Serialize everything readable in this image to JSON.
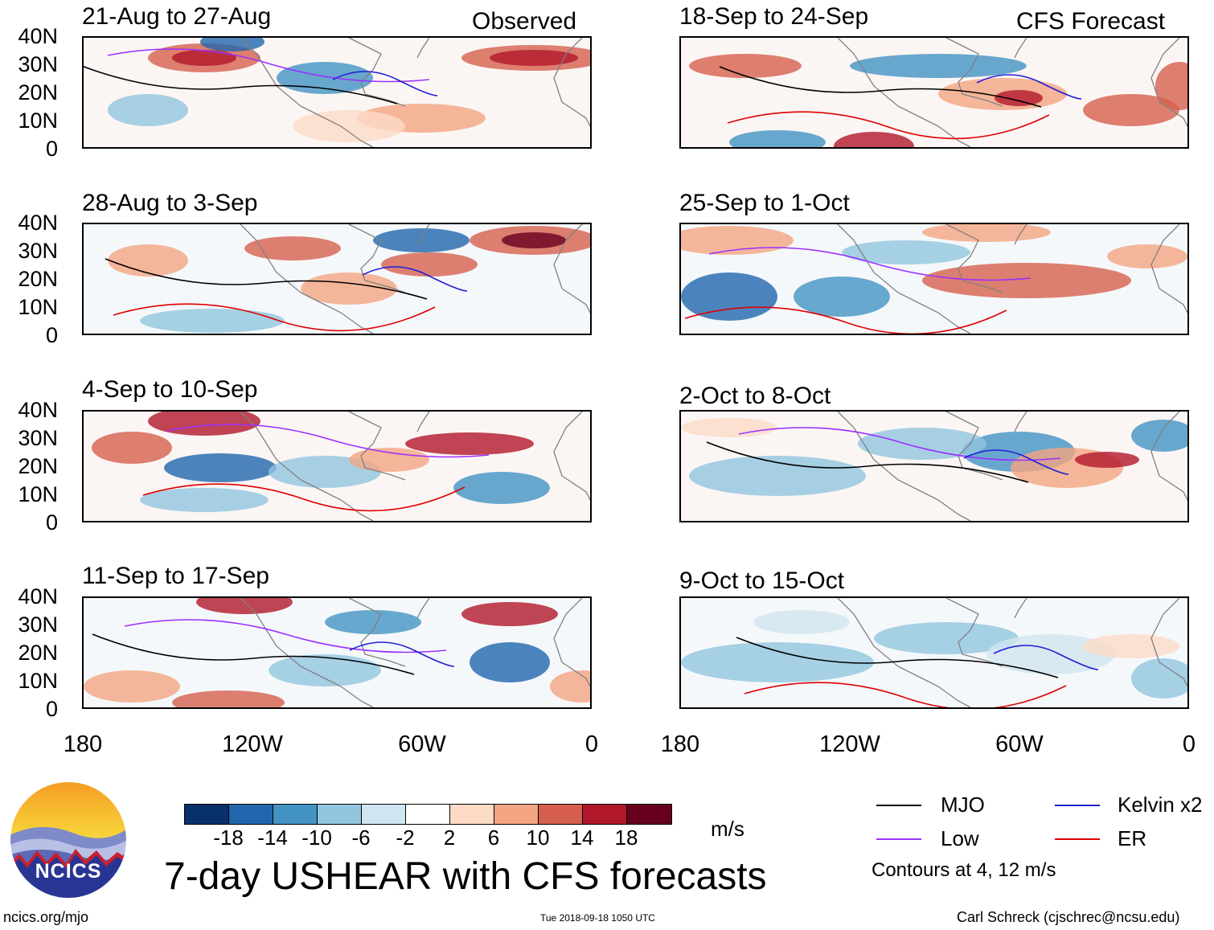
{
  "header": {
    "observed_label": "Observed",
    "forecast_label": "CFS Forecast"
  },
  "panels_left": [
    {
      "title": "21-Aug to 27-Aug"
    },
    {
      "title": "28-Aug to 3-Sep"
    },
    {
      "title": "4-Sep to 10-Sep"
    },
    {
      "title": "11-Sep to 17-Sep"
    }
  ],
  "panels_right": [
    {
      "title": "18-Sep to 24-Sep"
    },
    {
      "title": "25-Sep to 1-Oct"
    },
    {
      "title": "2-Oct to 8-Oct"
    },
    {
      "title": "9-Oct to 15-Oct"
    }
  ],
  "lat_labels": [
    "40N",
    "30N",
    "20N",
    "10N",
    "0"
  ],
  "lon_labels": [
    "180",
    "120W",
    "60W",
    "0"
  ],
  "colorbar": {
    "colors": [
      "#08306b",
      "#2166ac",
      "#4393c3",
      "#92c5de",
      "#d1e5f0",
      "#ffffff",
      "#fddbc7",
      "#f4a582",
      "#d6604d",
      "#b2182b",
      "#67001f"
    ],
    "labels": [
      "-18",
      "-14",
      "-10",
      "-6",
      "-2",
      "2",
      "6",
      "10",
      "14",
      "18"
    ],
    "units": "m/s"
  },
  "legend": {
    "mjo": {
      "label": "MJO",
      "color": "#000000"
    },
    "kelvin": {
      "label": "Kelvin x2",
      "color": "#1f1fd6"
    },
    "low": {
      "label": "Low",
      "color": "#9b30ff"
    },
    "er": {
      "label": "ER",
      "color": "#e00000"
    },
    "note": "Contours at 4, 12 m/s"
  },
  "main_title": "7-day USHEAR with CFS forecasts",
  "logo_text": "NCICS",
  "footer": {
    "website": "ncics.org/mjo",
    "timestamp": "Tue 2018-09-18 1050 UTC",
    "author": "Carl Schreck (cjschrec@ncsu.edu)"
  }
}
